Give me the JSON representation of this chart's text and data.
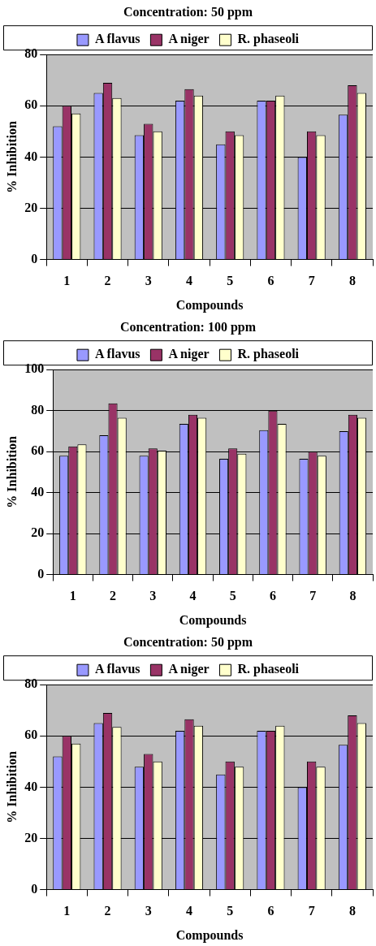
{
  "chart_data": [
    {
      "type": "bar",
      "title": "Concentration: 50 ppm",
      "xlabel": "Compounds",
      "ylabel": "% Inhibition",
      "categories": [
        "1",
        "2",
        "3",
        "4",
        "5",
        "6",
        "7",
        "8"
      ],
      "series": [
        {
          "name": "A flavus",
          "color": "#9999ff",
          "values": [
            52,
            65,
            48.5,
            62,
            45,
            62,
            40,
            56.5
          ]
        },
        {
          "name": "A niger",
          "color": "#993366",
          "values": [
            60,
            69,
            53,
            66.5,
            50,
            62,
            50,
            68
          ]
        },
        {
          "name": "R. phaseoli",
          "color": "#ffffcc",
          "values": [
            57,
            63,
            50,
            64,
            48.5,
            64,
            48.5,
            65
          ]
        }
      ],
      "ylim": [
        0,
        80
      ],
      "yticks": [
        0,
        20,
        40,
        60,
        80
      ],
      "grid": "y",
      "legend": "top"
    },
    {
      "type": "bar",
      "title": "Concentration: 100 ppm",
      "xlabel": "Compounds",
      "ylabel": "% Inhibition",
      "categories": [
        "1",
        "2",
        "3",
        "4",
        "5",
        "6",
        "7",
        "8"
      ],
      "series": [
        {
          "name": "A flavus",
          "color": "#9999ff",
          "values": [
            58,
            68,
            58,
            73.5,
            56.5,
            70.5,
            56.5,
            70
          ]
        },
        {
          "name": "A niger",
          "color": "#993366",
          "values": [
            62.5,
            83.5,
            61.5,
            78,
            61.5,
            80,
            60,
            78
          ]
        },
        {
          "name": "R. phaseoli",
          "color": "#ffffcc",
          "values": [
            63.5,
            76.5,
            60.5,
            76.5,
            59,
            73.5,
            58,
            76.5
          ]
        }
      ],
      "ylim": [
        0,
        100
      ],
      "yticks": [
        0,
        20,
        40,
        60,
        80,
        100
      ],
      "grid": "y",
      "legend": "top"
    },
    {
      "type": "bar",
      "title": "Concentration: 50 ppm",
      "xlabel": "Compounds",
      "ylabel": "% Inhibition",
      "categories": [
        "1",
        "2",
        "3",
        "4",
        "5",
        "6",
        "7",
        "8"
      ],
      "series": [
        {
          "name": "A flavus",
          "color": "#9999ff",
          "values": [
            52,
            65,
            48,
            62,
            45,
            62,
            40,
            56.5
          ]
        },
        {
          "name": "A niger",
          "color": "#993366",
          "values": [
            60,
            69,
            53,
            66.5,
            50,
            62,
            50,
            68
          ]
        },
        {
          "name": "R. phaseoli",
          "color": "#ffffcc",
          "values": [
            57,
            63.5,
            50,
            64,
            48,
            64,
            48,
            65
          ]
        }
      ],
      "ylim": [
        0,
        80
      ],
      "yticks": [
        0,
        20,
        40,
        60,
        80
      ],
      "grid": "y",
      "legend": "top"
    }
  ]
}
